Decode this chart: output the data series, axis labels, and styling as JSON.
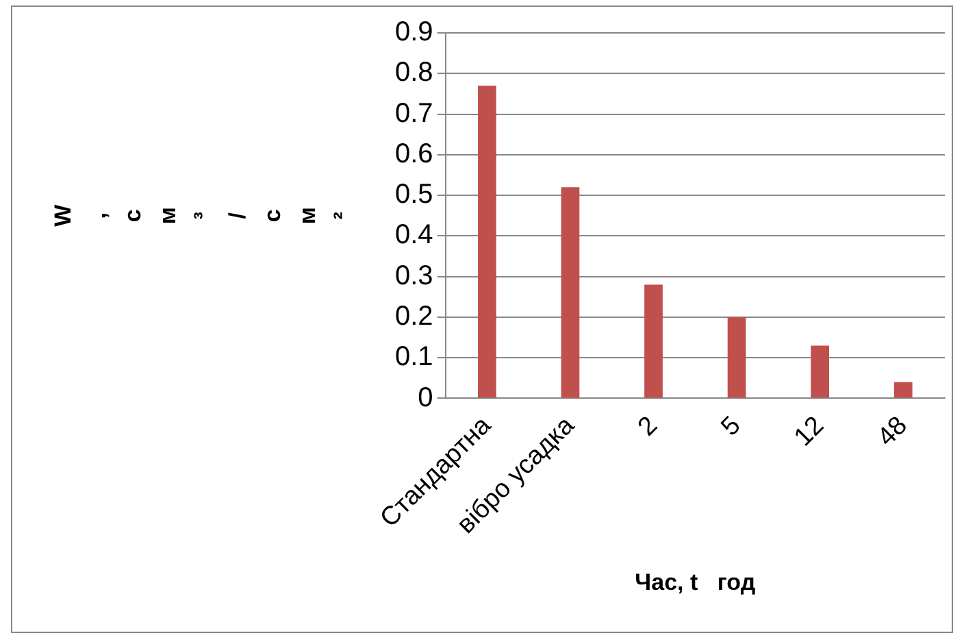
{
  "chart_data": {
    "type": "bar",
    "xlabel": "Час, t   год",
    "ylabel": "W, см³/см²",
    "categories": [
      "Стандартна",
      "вібро усадка",
      "2",
      "5",
      "12",
      "48"
    ],
    "values": [
      0.77,
      0.52,
      0.28,
      0.2,
      0.13,
      0.04
    ],
    "color": "#c0504d",
    "ylim": [
      0,
      0.9
    ],
    "yticks": [
      0,
      0.1,
      0.2,
      0.3,
      0.4,
      0.5,
      0.6,
      0.7,
      0.8,
      0.9
    ],
    "grid": "y"
  }
}
